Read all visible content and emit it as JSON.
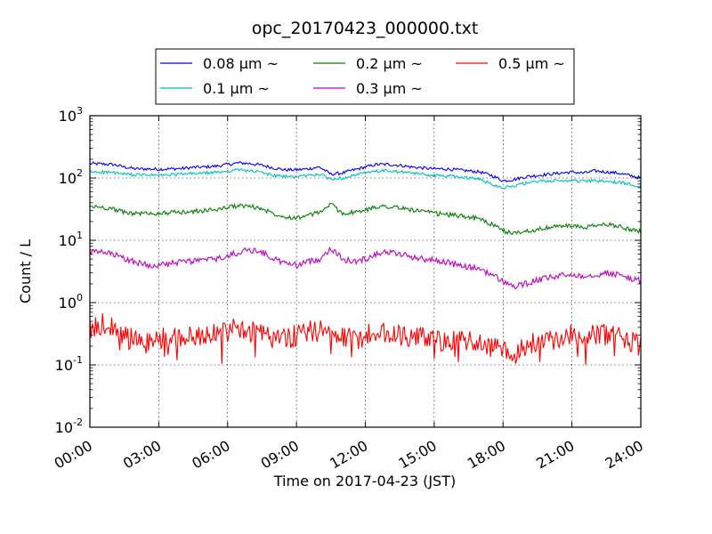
{
  "chart_data": {
    "type": "line",
    "title": "opc_20170423_000000.txt",
    "xlabel": "Time on 2017-04-23 (JST)",
    "ylabel": "Count / L",
    "yscale": "log",
    "ylim": [
      0.01,
      1000
    ],
    "xlim": [
      0,
      24
    ],
    "grid": true,
    "legend_position": "top",
    "x_ticks": [
      "00:00",
      "03:00",
      "06:00",
      "09:00",
      "12:00",
      "15:00",
      "18:00",
      "21:00",
      "24:00"
    ],
    "y_ticks": [
      {
        "base": "10",
        "exp": "-2",
        "value": 0.01
      },
      {
        "base": "10",
        "exp": "-1",
        "value": 0.1
      },
      {
        "base": "10",
        "exp": "0",
        "value": 1
      },
      {
        "base": "10",
        "exp": "1",
        "value": 10
      },
      {
        "base": "10",
        "exp": "2",
        "value": 100
      },
      {
        "base": "10",
        "exp": "3",
        "value": 1000
      }
    ],
    "x_hours": [
      0,
      0.5,
      1,
      1.5,
      2,
      2.5,
      3,
      3.5,
      4,
      4.5,
      5,
      5.5,
      6,
      6.5,
      7,
      7.5,
      8,
      8.5,
      9,
      9.5,
      10,
      10.5,
      11,
      11.5,
      12,
      12.5,
      13,
      13.5,
      14,
      14.5,
      15,
      15.5,
      16,
      16.5,
      17,
      17.5,
      18,
      18.5,
      19,
      19.5,
      20,
      20.5,
      21,
      21.5,
      22,
      22.5,
      23,
      23.5,
      24
    ],
    "series": [
      {
        "name": "0.08 μm ~",
        "color": "#0000ff",
        "values": [
          170,
          168,
          165,
          150,
          140,
          140,
          138,
          140,
          142,
          148,
          150,
          155,
          165,
          175,
          170,
          160,
          145,
          135,
          135,
          140,
          150,
          115,
          120,
          135,
          150,
          165,
          165,
          160,
          150,
          145,
          140,
          140,
          135,
          130,
          125,
          110,
          90,
          95,
          105,
          110,
          115,
          120,
          125,
          120,
          130,
          125,
          120,
          110,
          100
        ]
      },
      {
        "name": "0.1 μm ~",
        "color": "#00bfbf",
        "values": [
          125,
          125,
          122,
          115,
          112,
          112,
          110,
          112,
          115,
          118,
          120,
          122,
          130,
          135,
          130,
          122,
          110,
          105,
          105,
          110,
          115,
          95,
          100,
          110,
          120,
          128,
          130,
          125,
          120,
          115,
          110,
          108,
          105,
          100,
          95,
          80,
          70,
          75,
          82,
          88,
          90,
          90,
          92,
          88,
          90,
          88,
          85,
          80,
          75
        ]
      },
      {
        "name": "0.2 μm ~",
        "color": "#008000",
        "values": [
          35,
          34,
          32,
          28,
          27,
          27,
          27,
          28,
          28,
          29,
          30,
          31,
          34,
          36,
          35,
          32,
          27,
          24,
          23,
          25,
          28,
          38,
          27,
          28,
          30,
          35,
          35,
          33,
          31,
          29,
          27,
          26,
          25,
          24,
          22,
          18,
          14,
          13,
          14,
          15,
          16,
          17,
          17,
          16,
          17,
          18,
          17,
          15,
          14
        ]
      },
      {
        "name": "0.3 μm ~",
        "color": "#bf00bf",
        "values": [
          6.5,
          6.4,
          6,
          5,
          4.5,
          4,
          4,
          4.2,
          4.5,
          4.7,
          4.8,
          5,
          5.5,
          6.5,
          7,
          6.5,
          5,
          4.3,
          4,
          4.5,
          5,
          7.5,
          5,
          4.5,
          5,
          6.2,
          6.5,
          6,
          5.5,
          5,
          4.8,
          4.5,
          4,
          3.7,
          3.5,
          2.8,
          2.2,
          1.8,
          2,
          2.3,
          2.5,
          2.7,
          2.8,
          2.7,
          2.8,
          3,
          2.8,
          2.5,
          2.2
        ]
      },
      {
        "name": "0.5 μm ~",
        "color": "#ff0000",
        "values": [
          0.4,
          0.45,
          0.4,
          0.3,
          0.25,
          0.22,
          0.25,
          0.3,
          0.28,
          0.3,
          0.3,
          0.3,
          0.35,
          0.4,
          0.35,
          0.3,
          0.28,
          0.25,
          0.3,
          0.35,
          0.35,
          0.35,
          0.3,
          0.25,
          0.3,
          0.32,
          0.32,
          0.3,
          0.3,
          0.28,
          0.25,
          0.22,
          0.25,
          0.25,
          0.22,
          0.2,
          0.18,
          0.15,
          0.2,
          0.25,
          0.25,
          0.28,
          0.3,
          0.3,
          0.3,
          0.3,
          0.3,
          0.25,
          0.2
        ]
      }
    ]
  }
}
